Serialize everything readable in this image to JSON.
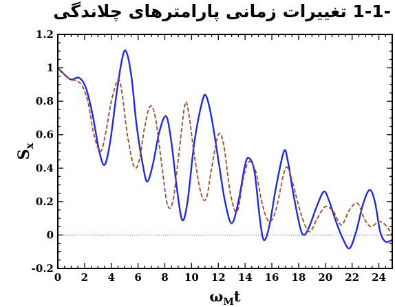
{
  "heading": "-1-1  تغییرات زمانی پارامترهای چلاندگی",
  "chart_data": {
    "type": "line",
    "title": "",
    "xlabel": "ω_M t",
    "ylabel": "S_x",
    "xlim": [
      0,
      25
    ],
    "ylim": [
      -0.2,
      1.2
    ],
    "x_ticks": [
      0,
      2,
      4,
      6,
      8,
      10,
      12,
      14,
      16,
      18,
      20,
      22,
      24
    ],
    "y_ticks": [
      -0.2,
      0,
      0.2,
      0.4,
      0.6,
      0.8,
      1,
      1.2
    ],
    "y_tick_labels": [
      "-0.2",
      "0",
      "0.2",
      "0.4",
      "0.6",
      "0.8",
      "1",
      "1.2"
    ],
    "grid": false,
    "reference_line": {
      "y": 0,
      "style": "dotted",
      "color": "#555555"
    },
    "series": [
      {
        "style": "solid",
        "color": "#1f2bd9",
        "points": [
          [
            0,
            1.0
          ],
          [
            0.5,
            0.96
          ],
          [
            1.0,
            0.93
          ],
          [
            1.6,
            0.94
          ],
          [
            2.1,
            0.88
          ],
          [
            2.6,
            0.72
          ],
          [
            3.1,
            0.5
          ],
          [
            3.5,
            0.42
          ],
          [
            3.9,
            0.55
          ],
          [
            4.4,
            0.85
          ],
          [
            4.8,
            1.05
          ],
          [
            5.1,
            1.1
          ],
          [
            5.5,
            0.95
          ],
          [
            5.9,
            0.65
          ],
          [
            6.4,
            0.4
          ],
          [
            6.7,
            0.32
          ],
          [
            7.1,
            0.42
          ],
          [
            7.6,
            0.62
          ],
          [
            8.1,
            0.71
          ],
          [
            8.5,
            0.55
          ],
          [
            8.9,
            0.28
          ],
          [
            9.3,
            0.09
          ],
          [
            9.7,
            0.2
          ],
          [
            10.2,
            0.55
          ],
          [
            10.8,
            0.8
          ],
          [
            11.1,
            0.83
          ],
          [
            11.5,
            0.7
          ],
          [
            12.0,
            0.45
          ],
          [
            12.5,
            0.2
          ],
          [
            13.0,
            0.07
          ],
          [
            13.5,
            0.2
          ],
          [
            14.0,
            0.42
          ],
          [
            14.3,
            0.46
          ],
          [
            14.7,
            0.38
          ],
          [
            15.1,
            0.1
          ],
          [
            15.4,
            -0.03
          ],
          [
            15.8,
            0.05
          ],
          [
            16.3,
            0.28
          ],
          [
            16.9,
            0.5
          ],
          [
            17.2,
            0.44
          ],
          [
            17.6,
            0.25
          ],
          [
            18.1,
            0.05
          ],
          [
            18.4,
            0.0
          ],
          [
            18.8,
            0.05
          ],
          [
            19.4,
            0.18
          ],
          [
            19.9,
            0.26
          ],
          [
            20.3,
            0.2
          ],
          [
            20.8,
            0.08
          ],
          [
            21.3,
            -0.02
          ],
          [
            21.8,
            -0.08
          ],
          [
            22.3,
            0.02
          ],
          [
            22.8,
            0.18
          ],
          [
            23.3,
            0.27
          ],
          [
            23.7,
            0.2
          ],
          [
            24.1,
            0.02
          ],
          [
            24.5,
            -0.04
          ],
          [
            25.0,
            -0.03
          ]
        ]
      },
      {
        "style": "dashed",
        "color": "#a0522d",
        "points": [
          [
            0,
            1.0
          ],
          [
            0.5,
            0.96
          ],
          [
            1.0,
            0.93
          ],
          [
            1.5,
            0.92
          ],
          [
            1.9,
            0.88
          ],
          [
            2.3,
            0.78
          ],
          [
            2.7,
            0.6
          ],
          [
            3.2,
            0.5
          ],
          [
            3.6,
            0.62
          ],
          [
            4.0,
            0.8
          ],
          [
            4.5,
            0.93
          ],
          [
            4.8,
            0.85
          ],
          [
            5.2,
            0.6
          ],
          [
            5.7,
            0.41
          ],
          [
            6.1,
            0.45
          ],
          [
            6.5,
            0.65
          ],
          [
            6.9,
            0.77
          ],
          [
            7.3,
            0.7
          ],
          [
            7.8,
            0.4
          ],
          [
            8.2,
            0.18
          ],
          [
            8.6,
            0.2
          ],
          [
            9.0,
            0.45
          ],
          [
            9.5,
            0.78
          ],
          [
            9.8,
            0.72
          ],
          [
            10.2,
            0.48
          ],
          [
            10.7,
            0.25
          ],
          [
            11.1,
            0.22
          ],
          [
            11.5,
            0.4
          ],
          [
            12.0,
            0.6
          ],
          [
            12.4,
            0.54
          ],
          [
            12.9,
            0.25
          ],
          [
            13.4,
            0.14
          ],
          [
            13.9,
            0.35
          ],
          [
            14.3,
            0.44
          ],
          [
            14.8,
            0.38
          ],
          [
            15.3,
            0.18
          ],
          [
            15.8,
            0.08
          ],
          [
            16.3,
            0.15
          ],
          [
            16.9,
            0.37
          ],
          [
            17.2,
            0.4
          ],
          [
            17.6,
            0.3
          ],
          [
            18.2,
            0.12
          ],
          [
            18.8,
            0.02
          ],
          [
            19.4,
            0.1
          ],
          [
            20.0,
            0.17
          ],
          [
            20.6,
            0.14
          ],
          [
            21.2,
            0.06
          ],
          [
            21.8,
            0.15
          ],
          [
            22.4,
            0.19
          ],
          [
            22.9,
            0.1
          ],
          [
            23.4,
            0.05
          ],
          [
            24.0,
            0.08
          ],
          [
            24.5,
            0.06
          ],
          [
            25.0,
            0.0
          ]
        ]
      }
    ]
  }
}
